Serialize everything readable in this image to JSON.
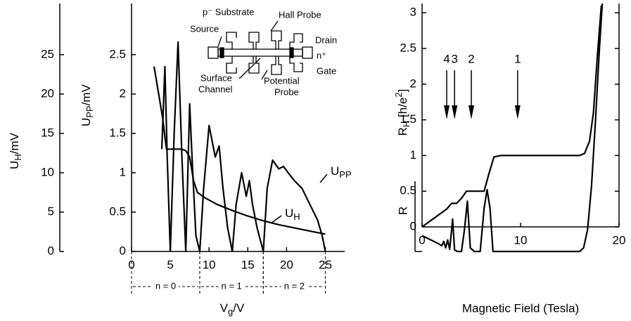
{
  "chart_data": [
    {
      "type": "line",
      "xlabel": [
        "V",
        "g",
        "/V"
      ],
      "ylabel": [
        "U",
        "PP",
        "/mV"
      ],
      "y2label": [
        "U",
        "H",
        "/mV"
      ],
      "xlim": [
        0,
        27.5
      ],
      "xticks": [
        0,
        5,
        10,
        15,
        20,
        25
      ],
      "ylim": [
        0,
        3.15
      ],
      "yticks": [
        0,
        0.5,
        1,
        1.5,
        2,
        2.5
      ],
      "y2lim": [
        0,
        31.5
      ],
      "y2ticks": [
        0,
        5,
        10,
        15,
        20,
        25
      ],
      "color": "#000000",
      "series": [
        {
          "label": [
            "U",
            "PP"
          ],
          "x": [
            3.9,
            4.3,
            4.6,
            5.0,
            5.5,
            6.0,
            6.5,
            7.0,
            7.5,
            7.9,
            8.3,
            8.8,
            9.3,
            10.0,
            10.8,
            11.3,
            11.8,
            12.4,
            13.0,
            13.5,
            14.2,
            14.8,
            15.2,
            15.6,
            16.2,
            17.0,
            17.5,
            18.2,
            19.0,
            19.6,
            20.2,
            21.0,
            22.0,
            23.0,
            24.0,
            24.6,
            25.0
          ],
          "values": [
            1.3,
            2.35,
            1.2,
            0,
            1.5,
            2.66,
            1.2,
            0,
            1.875,
            1.0,
            0.2,
            0,
            0.8,
            1.6,
            1.2,
            1.34,
            0.8,
            0.3,
            0,
            0.6,
            1.0,
            0.7,
            0.9,
            0.6,
            0.3,
            0,
            0.8,
            1.16,
            1.05,
            1.08,
            1.0,
            0.9,
            0.8,
            0.6,
            0.4,
            0.2,
            0
          ]
        },
        {
          "label": [
            "U",
            "H"
          ],
          "axis": "y2",
          "x": [
            2.9,
            3.5,
            4.0,
            4.5,
            5.5,
            6.5,
            7.0,
            7.5,
            8.0,
            8.5,
            9.5,
            11,
            13,
            15,
            17,
            19,
            21,
            23,
            25
          ],
          "values": [
            23.5,
            20,
            17,
            13,
            13,
            13,
            12.8,
            12,
            9,
            7.5,
            6.8,
            6,
            5.2,
            4.5,
            3.9,
            3.4,
            3,
            2.6,
            2.2
          ]
        }
      ],
      "regions": [
        {
          "label": "n = 0",
          "from": 0,
          "to": 8.8
        },
        {
          "label": "n = 1",
          "from": 8.8,
          "to": 17
        },
        {
          "label": "n = 2",
          "from": 17,
          "to": 25
        }
      ],
      "inset_labels": [
        "p⁻ Substrate",
        "Hall Probe",
        "Source",
        "Drain",
        "n⁺",
        "Gate",
        "Surface",
        "Channel",
        "Potential",
        "Probe"
      ]
    },
    {
      "type": "line",
      "xlabel": "Magnetic Field (Tesla)",
      "ylabel": [
        "R",
        "H",
        " [h/e",
        "2",
        "]"
      ],
      "y2label": "R",
      "xlim": [
        0,
        20
      ],
      "xticks": [
        0,
        10,
        20
      ],
      "ylim": [
        0,
        3.13
      ],
      "yticks": [
        0,
        0.5,
        1,
        1.5,
        2,
        2.5,
        3
      ],
      "y2lim": [
        0,
        3.45
      ],
      "color": "#000000",
      "series": [
        {
          "name": "RH",
          "x": [
            0,
            1,
            2,
            2.5,
            3,
            3.5,
            4,
            4.5,
            5,
            6.3,
            6.8,
            7.3,
            8,
            16,
            16.5,
            17,
            17.4,
            17.8,
            18.2
          ],
          "values": [
            0,
            0.1,
            0.2,
            0.25,
            0.33,
            0.33,
            0.4,
            0.5,
            0.5,
            0.5,
            0.75,
            0.98,
            1,
            1,
            1.03,
            1.2,
            1.6,
            2.4,
            3.1
          ]
        },
        {
          "name": "R",
          "axis": "y2",
          "x": [
            0,
            1.5,
            2,
            2.2,
            2.4,
            2.6,
            2.8,
            3.0,
            3.1,
            3.3,
            3.6,
            4.0,
            4.3,
            4.6,
            4.9,
            5.3,
            5.9,
            6.3,
            6.6,
            6.9,
            7.2,
            16,
            16.4,
            16.8,
            17.2,
            17.6,
            18,
            18.3
          ],
          "values": [
            0.22,
            0.12,
            0.08,
            0.14,
            0.05,
            0.16,
            0.03,
            0.3,
            0.45,
            0.02,
            0,
            0,
            0.3,
            0.7,
            0.05,
            0,
            0,
            0.6,
            0.86,
            0.6,
            0,
            0,
            0.05,
            0.3,
            0.9,
            1.8,
            2.8,
            3.45
          ]
        }
      ],
      "arrows": [
        {
          "label": "4",
          "x": 2.5
        },
        {
          "label": "3",
          "x": 3.3
        },
        {
          "label": "2",
          "x": 5.0
        },
        {
          "label": "1",
          "x": 9.7
        }
      ]
    }
  ]
}
